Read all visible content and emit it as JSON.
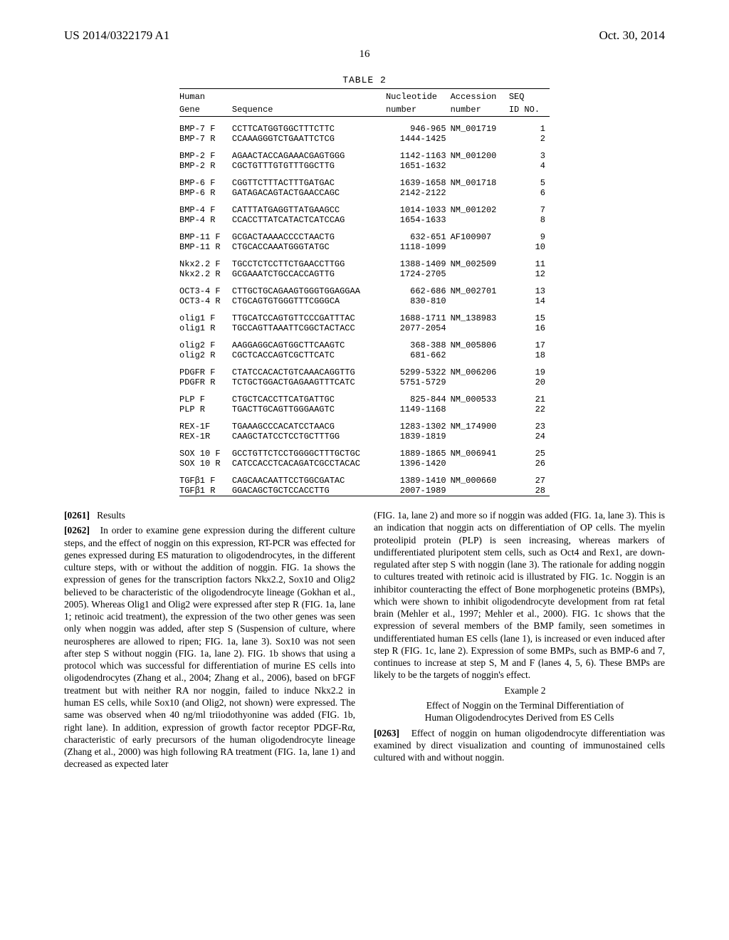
{
  "header": {
    "pub_number": "US 2014/0322179 A1",
    "pub_date": "Oct. 30, 2014",
    "page_number": "16"
  },
  "table": {
    "caption": "TABLE 2",
    "head_row1": {
      "c1": "Human",
      "c2": "",
      "c3": "Nucleotide",
      "c4": "Accession",
      "c5": "SEQ"
    },
    "head_row2": {
      "c1": "Gene",
      "c2": "Sequence",
      "c3": "number",
      "c4": "number",
      "c5": "ID NO."
    },
    "groups": [
      {
        "rows": [
          {
            "gene": "BMP-7 F",
            "seq": "CCTTCATGGTGGCTTTCTTC",
            "nuc": "946-965",
            "acc": "NM_001719",
            "id": "1"
          },
          {
            "gene": "BMP-7 R",
            "seq": "CCAAAGGGTCTGAATTCTCG",
            "nuc": "1444-1425",
            "acc": "",
            "id": "2"
          }
        ]
      },
      {
        "rows": [
          {
            "gene": "BMP-2 F",
            "seq": "AGAACTACCAGAAACGAGTGGG",
            "nuc": "1142-1163",
            "acc": "NM_001200",
            "id": "3"
          },
          {
            "gene": "BMP-2 R",
            "seq": "CGCTGTTTGTGTTTGGCTTG",
            "nuc": "1651-1632",
            "acc": "",
            "id": "4"
          }
        ]
      },
      {
        "rows": [
          {
            "gene": "BMP-6 F",
            "seq": "CGGTTCTTTACTTTGATGAC",
            "nuc": "1639-1658",
            "acc": "NM_001718",
            "id": "5"
          },
          {
            "gene": "BMP-6 R",
            "seq": "GATAGACAGTACTGAACCAGC",
            "nuc": "2142-2122",
            "acc": "",
            "id": "6"
          }
        ]
      },
      {
        "rows": [
          {
            "gene": "BMP-4 F",
            "seq": "CATTTATGAGGTTATGAAGCC",
            "nuc": "1014-1033",
            "acc": "NM_001202",
            "id": "7"
          },
          {
            "gene": "BMP-4 R",
            "seq": "CCACCTTATCATACTCATCCAG",
            "nuc": "1654-1633",
            "acc": "",
            "id": "8"
          }
        ]
      },
      {
        "rows": [
          {
            "gene": "BMP-11 F",
            "seq": "GCGACTAAAACCCCTAACTG",
            "nuc": "632-651",
            "acc": "AF100907",
            "id": "9"
          },
          {
            "gene": "BMP-11 R",
            "seq": "CTGCACCAAATGGGTATGC",
            "nuc": "1118-1099",
            "acc": "",
            "id": "10"
          }
        ]
      },
      {
        "rows": [
          {
            "gene": "Nkx2.2 F",
            "seq": "TGCCTCTCCTTCTGAACCTTGG",
            "nuc": "1388-1409",
            "acc": "NM_002509",
            "id": "11"
          },
          {
            "gene": "Nkx2.2 R",
            "seq": "GCGAAATCTGCCACCAGTTG",
            "nuc": "1724-2705",
            "acc": "",
            "id": "12"
          }
        ]
      },
      {
        "rows": [
          {
            "gene": "OCT3-4 F",
            "seq": "CTTGCTGCAGAAGTGGGTGGAGGAA",
            "nuc": "662-686",
            "acc": "NM_002701",
            "id": "13"
          },
          {
            "gene": "OCT3-4 R",
            "seq": "CTGCAGTGTGGGTTTCGGGCA",
            "nuc": "830-810",
            "acc": "",
            "id": "14"
          }
        ]
      },
      {
        "rows": [
          {
            "gene": "olig1 F",
            "seq": "TTGCATCCAGTGTTCCCGATTTAC",
            "nuc": "1688-1711",
            "acc": "NM_138983",
            "id": "15"
          },
          {
            "gene": "olig1 R",
            "seq": "TGCCAGTTAAATTCGGCTACTACC",
            "nuc": "2077-2054",
            "acc": "",
            "id": "16"
          }
        ]
      },
      {
        "rows": [
          {
            "gene": "olig2 F",
            "seq": "AAGGAGGCAGTGGCTTCAAGTC",
            "nuc": "368-388",
            "acc": "NM_005806",
            "id": "17"
          },
          {
            "gene": "olig2 R",
            "seq": "CGCTCACCAGTCGCTTCATC",
            "nuc": "681-662",
            "acc": "",
            "id": "18"
          }
        ]
      },
      {
        "rows": [
          {
            "gene": "PDGFR F",
            "seq": "CTATCCACACTGTCAAACAGGTTG",
            "nuc": "5299-5322",
            "acc": "NM_006206",
            "id": "19"
          },
          {
            "gene": "PDGFR R",
            "seq": "TCTGCTGGACTGAGAAGTTTCATC",
            "nuc": "5751-5729",
            "acc": "",
            "id": "20"
          }
        ]
      },
      {
        "rows": [
          {
            "gene": "PLP F",
            "seq": "CTGCTCACCTTCATGATTGC",
            "nuc": "825-844",
            "acc": "NM_000533",
            "id": "21"
          },
          {
            "gene": "PLP R",
            "seq": "TGACTTGCAGTTGGGAAGTC",
            "nuc": "1149-1168",
            "acc": "",
            "id": "22"
          }
        ]
      },
      {
        "rows": [
          {
            "gene": "REX-1F",
            "seq": "TGAAAGCCCACATCCTAACG",
            "nuc": "1283-1302",
            "acc": "NM_174900",
            "id": "23"
          },
          {
            "gene": "REX-1R",
            "seq": "CAAGCTATCCTCCTGCTTTGG",
            "nuc": "1839-1819",
            "acc": "",
            "id": "24"
          }
        ]
      },
      {
        "rows": [
          {
            "gene": "SOX 10 F",
            "seq": "GCCTGTTCTCCTGGGGCTTTGCTGC",
            "nuc": "1889-1865",
            "acc": "NM_006941",
            "id": "25"
          },
          {
            "gene": "SOX 10 R",
            "seq": "CATCCACCTCACAGATCGCCTACAC",
            "nuc": "1396-1420",
            "acc": "",
            "id": "26"
          }
        ]
      },
      {
        "rows": [
          {
            "gene": "TGFβ1 F",
            "seq": "CAGCAACAATTCCTGGCGATAC",
            "nuc": "1389-1410",
            "acc": "NM_000660",
            "id": "27"
          },
          {
            "gene": "TGFβ1 R",
            "seq": "GGACAGCTGCTCCACCTTG",
            "nuc": "2007-1989",
            "acc": "",
            "id": "28"
          }
        ]
      }
    ]
  },
  "body": {
    "p0261_num": "[0261]",
    "p0261": "Results",
    "p0262_num": "[0262]",
    "p0262": "In order to examine gene expression during the different culture steps, and the effect of noggin on this expression, RT-PCR was effected for genes expressed during ES maturation to oligodendrocytes, in the different culture steps, with or without the addition of noggin. FIG. 1a shows the expression of genes for the transcription factors Nkx2.2, Sox10 and Olig2 believed to be characteristic of the oligodendrocyte lineage (Gokhan et al., 2005). Whereas Olig1 and Olig2 were expressed after step R (FIG. 1a, lane 1; retinoic acid treatment), the expression of the two other genes was seen only when noggin was added, after step S (Suspension of culture, where neurospheres are allowed to ripen; FIG. 1a, lane 3). Sox10 was not seen after step S without noggin (FIG. 1a, lane 2). FIG. 1b shows that using a protocol which was successful for differentiation of murine ES cells into oligodendrocytes (Zhang et al., 2004; Zhang et al., 2006), based on bFGF treatment but with neither RA nor noggin, failed to induce Nkx2.2 in human ES cells, while Sox10 (and Olig2, not shown) were expressed. The same was observed when 40 ng/ml triiodothyonine was added (FIG. 1b, right lane). In addition, expression of growth factor receptor PDGF-Rα, characteristic of early precursors of the human oligodendrocyte lineage (Zhang et al., 2000) was high following RA treatment (FIG. 1a, lane 1) and decreased as expected later",
    "p_cont": "(FIG. 1a, lane 2) and more so if noggin was added (FIG. 1a, lane 3). This is an indication that noggin acts on differentiation of OP cells. The myelin proteolipid protein (PLP) is seen increasing, whereas markers of undifferentiated pluripotent stem cells, such as Oct4 and Rex1, are down-regulated after step S with noggin (lane 3). The rationale for adding noggin to cultures treated with retinoic acid is illustrated by FIG. 1c. Noggin is an inhibitor counteracting the effect of Bone morphogenetic proteins (BMPs), which were shown to inhibit oligodendrocyte development from rat fetal brain (Mehler et al., 1997; Mehler et al., 2000). FIG. 1c shows that the expression of several members of the BMP family, seen sometimes in undifferentiated human ES cells (lane 1), is increased or even induced after step R (FIG. 1c, lane 2). Expression of some BMPs, such as BMP-6 and 7, continues to increase at step S, M and F (lanes 4, 5, 6). These BMPs are likely to be the targets of noggin's effect.",
    "ex2_label": "Example 2",
    "ex2_title_l1": "Effect of Noggin on the Terminal Differentiation of",
    "ex2_title_l2": "Human Oligodendrocytes Derived from ES Cells",
    "p0263_num": "[0263]",
    "p0263": "Effect of noggin on human oligodendrocyte differentiation was examined by direct visualization and counting of immunostained cells cultured with and without noggin."
  }
}
